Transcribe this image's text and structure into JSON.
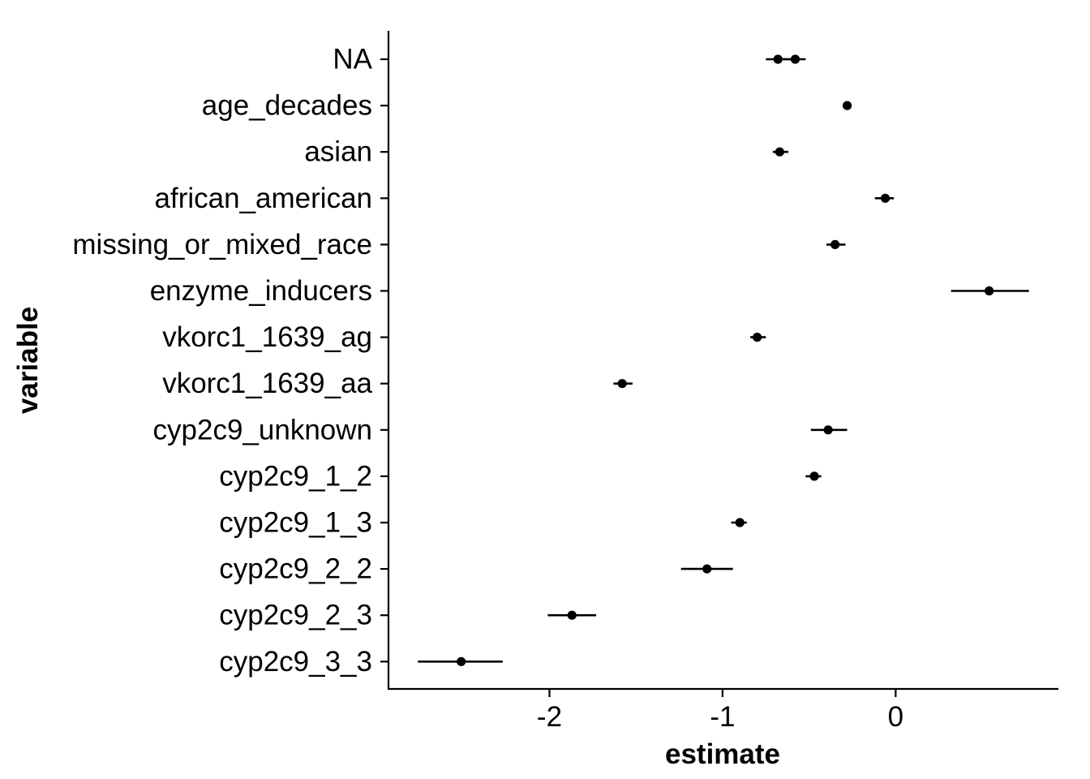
{
  "chart_data": {
    "type": "scatter",
    "xlabel": "estimate",
    "ylabel": "variable",
    "xlim": [
      -2.93,
      0.94
    ],
    "x_ticks": [
      -2,
      -1,
      0
    ],
    "x_tick_labels": [
      "-2",
      "-1",
      "0"
    ],
    "categories": [
      "NA",
      "age_decades",
      "asian",
      "african_american",
      "missing_or_mixed_race",
      "enzyme_inducers",
      "vkorc1_1639_ag",
      "vkorc1_1639_aa",
      "cyp2c9_unknown",
      "cyp2c9_1_2",
      "cyp2c9_1_3",
      "cyp2c9_2_2",
      "cyp2c9_2_3",
      "cyp2c9_3_3"
    ],
    "points": [
      {
        "variable": "NA",
        "estimate": -0.68,
        "low": -0.75,
        "high": -0.6
      },
      {
        "variable": "NA",
        "estimate": -0.58,
        "low": -0.65,
        "high": -0.52
      },
      {
        "variable": "age_decades",
        "estimate": -0.28,
        "low": -0.29,
        "high": -0.27
      },
      {
        "variable": "asian",
        "estimate": -0.67,
        "low": -0.71,
        "high": -0.62
      },
      {
        "variable": "african_american",
        "estimate": -0.06,
        "low": -0.12,
        "high": -0.01
      },
      {
        "variable": "missing_or_mixed_race",
        "estimate": -0.35,
        "low": -0.4,
        "high": -0.29
      },
      {
        "variable": "enzyme_inducers",
        "estimate": 0.54,
        "low": 0.32,
        "high": 0.77
      },
      {
        "variable": "vkorc1_1639_ag",
        "estimate": -0.8,
        "low": -0.84,
        "high": -0.75
      },
      {
        "variable": "vkorc1_1639_aa",
        "estimate": -1.58,
        "low": -1.63,
        "high": -1.52
      },
      {
        "variable": "cyp2c9_unknown",
        "estimate": -0.39,
        "low": -0.49,
        "high": -0.28
      },
      {
        "variable": "cyp2c9_1_2",
        "estimate": -0.47,
        "low": -0.52,
        "high": -0.43
      },
      {
        "variable": "cyp2c9_1_3",
        "estimate": -0.9,
        "low": -0.95,
        "high": -0.86
      },
      {
        "variable": "cyp2c9_2_2",
        "estimate": -1.09,
        "low": -1.24,
        "high": -0.94
      },
      {
        "variable": "cyp2c9_2_3",
        "estimate": -1.87,
        "low": -2.01,
        "high": -1.73
      },
      {
        "variable": "cyp2c9_3_3",
        "estimate": -2.51,
        "low": -2.76,
        "high": -2.27
      }
    ],
    "point_color": "#000000",
    "grid": false,
    "legend": "none"
  }
}
